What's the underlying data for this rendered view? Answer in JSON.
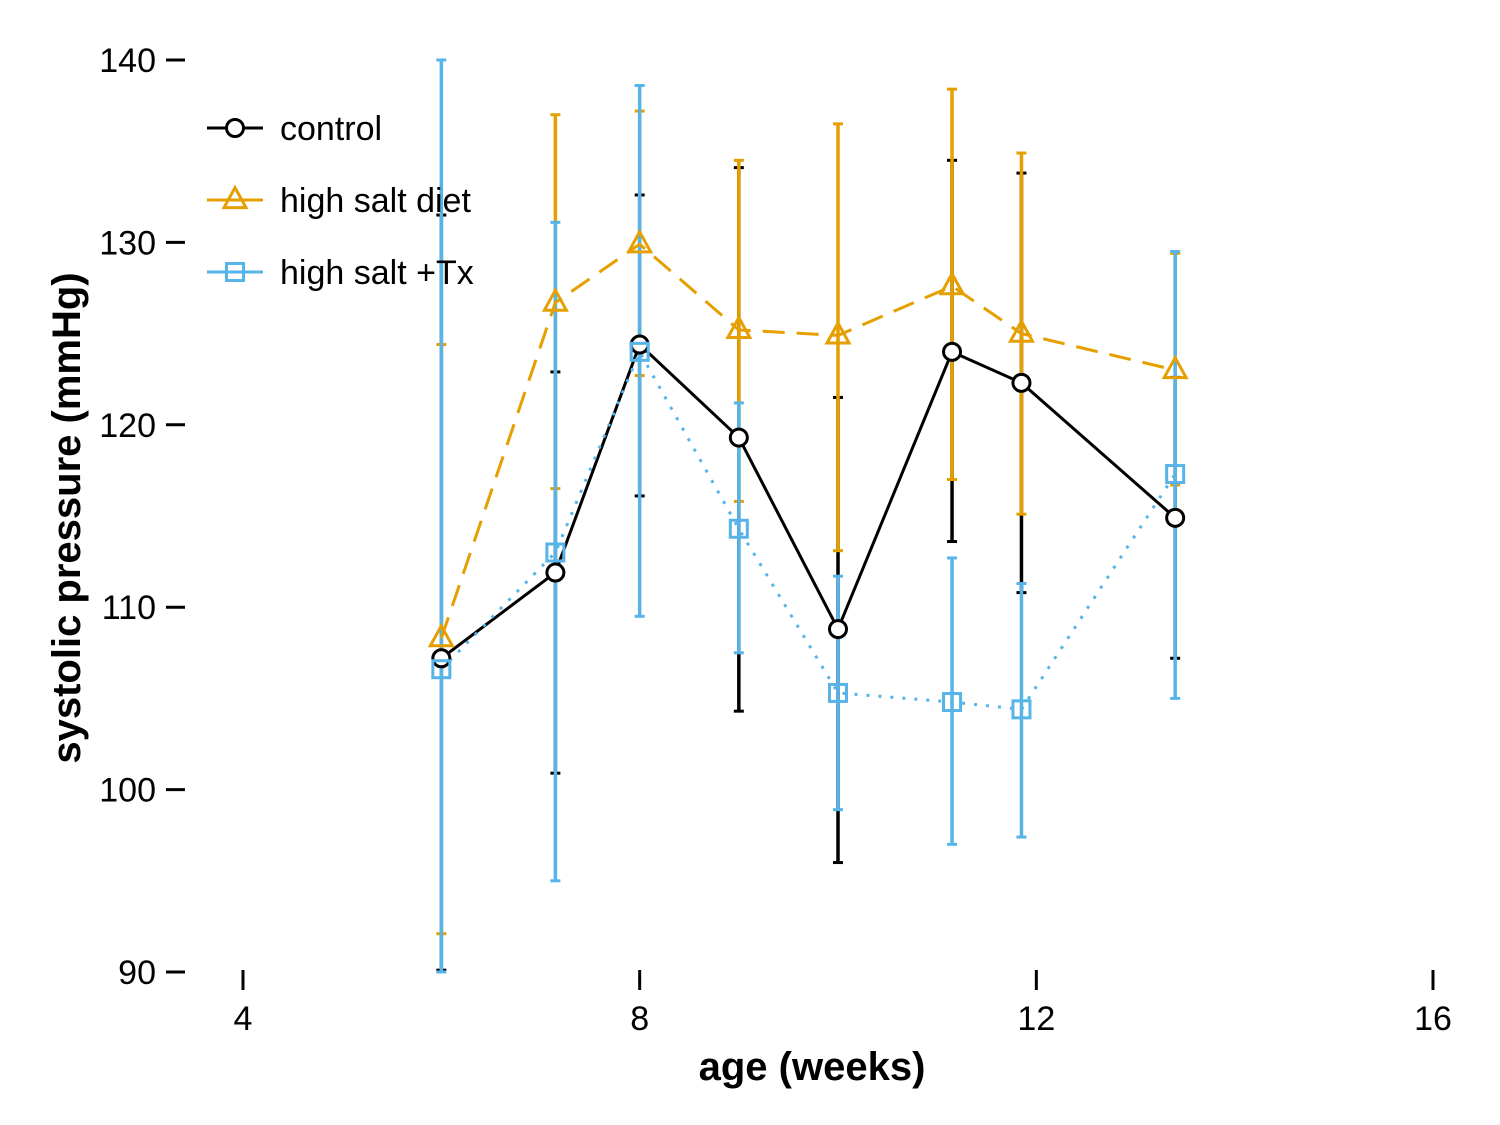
{
  "chart_data": {
    "type": "line",
    "title": "",
    "xlabel": "age (weeks)",
    "ylabel": "systolic pressure (mmHg)",
    "xlim": [
      4,
      16
    ],
    "ylim": [
      90,
      140
    ],
    "x_ticks": [
      4,
      8,
      12,
      16
    ],
    "y_ticks": [
      90,
      100,
      110,
      120,
      130,
      140
    ],
    "grid": false,
    "legend_position": "top-left",
    "series": [
      {
        "name": "control",
        "color": "#000000",
        "marker": "circle",
        "line_style": "solid",
        "x": [
          6.0,
          7.15,
          8.0,
          9.0,
          10.0,
          11.15,
          11.85,
          13.4
        ],
        "y": [
          107.2,
          111.9,
          124.4,
          119.3,
          108.8,
          124.0,
          122.3,
          114.9
        ],
        "err_low": [
          90.1,
          100.9,
          116.1,
          104.3,
          96.0,
          113.6,
          110.8,
          107.2
        ],
        "err_high": [
          131.5,
          122.9,
          132.6,
          134.1,
          121.5,
          134.5,
          133.8,
          122.6
        ]
      },
      {
        "name": "high salt diet",
        "color": "#E69F00",
        "marker": "triangle",
        "line_style": "dashed",
        "x": [
          6.0,
          7.15,
          8.0,
          9.0,
          10.0,
          11.15,
          11.85,
          13.4
        ],
        "y": [
          108.3,
          126.7,
          129.9,
          125.2,
          124.9,
          127.6,
          125.0,
          123.0
        ],
        "err_low": [
          92.1,
          116.5,
          122.7,
          115.8,
          113.1,
          117.0,
          115.1,
          116.7
        ],
        "err_high": [
          124.4,
          137.0,
          137.2,
          134.5,
          136.5,
          138.4,
          134.9,
          129.4
        ]
      },
      {
        "name": "high salt +Tx",
        "color": "#56B4E9",
        "marker": "square",
        "line_style": "dotted",
        "x": [
          6.0,
          7.15,
          8.0,
          9.0,
          10.0,
          11.15,
          11.85,
          13.4
        ],
        "y": [
          106.6,
          113.0,
          124.0,
          114.3,
          105.3,
          104.8,
          104.4,
          117.3
        ],
        "err_low": [
          90.0,
          95.0,
          109.5,
          107.5,
          98.9,
          97.0,
          97.4,
          105.0
        ],
        "err_high": [
          140.0,
          131.1,
          138.6,
          121.2,
          111.7,
          112.7,
          111.3,
          129.5
        ]
      }
    ]
  }
}
